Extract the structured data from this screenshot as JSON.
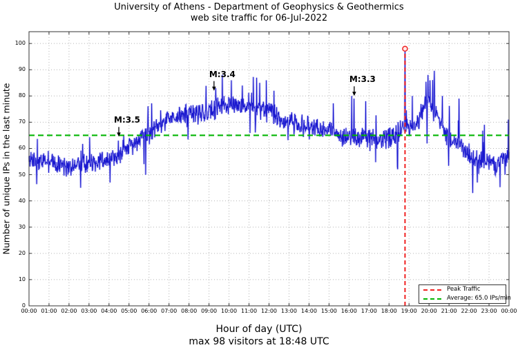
{
  "chart_data": {
    "type": "line",
    "title": "University of Athens - Department of Geophysics & Geothermics",
    "subtitle": "web site traffic for 06-Jul-2022",
    "xlabel": "Hour of day (UTC)",
    "xlabel_note": "max 98 visitors at 18:48 UTC",
    "ylabel": "Number of unique IPs in the last minute",
    "xlim_hours": [
      0,
      24
    ],
    "ylim": [
      0,
      104.5
    ],
    "grid": true,
    "x_tick_labels": [
      "00:00",
      "01:00",
      "02:00",
      "03:00",
      "04:00",
      "05:00",
      "06:00",
      "07:00",
      "08:00",
      "09:00",
      "10:00",
      "11:00",
      "12:00",
      "13:00",
      "14:00",
      "15:00",
      "16:00",
      "17:00",
      "18:00",
      "19:00",
      "20:00",
      "21:00",
      "22:00",
      "23:00",
      "00:00"
    ],
    "y_ticks": [
      0,
      10,
      20,
      30,
      40,
      50,
      60,
      70,
      80,
      90,
      100
    ],
    "series_name": "unique IPs per minute",
    "line_color": "#1a18cf",
    "line_color_light": "#9898ef",
    "grid_color": "#b3b3b3",
    "axis_color": "#333333",
    "average": {
      "value": 65.0,
      "color": "#00b400",
      "legend_label": "Average: 65.0 IPs/min"
    },
    "peak": {
      "value": 98,
      "time_label": "18:48",
      "time_hours": 18.8,
      "color": "#f02020",
      "legend_label": "Peak Traffic"
    },
    "legend_position": "lower right",
    "annotations": [
      {
        "label": "M:3.5",
        "arrow_x_hours": 4.49,
        "arrow_tip_value": 64.5
      },
      {
        "label": "M:3.4",
        "arrow_x_hours": 9.25,
        "arrow_tip_value": 82
      },
      {
        "label": "M:3.3",
        "arrow_x_hours": 16.26,
        "arrow_tip_value": 80
      }
    ],
    "hourly_profile": {
      "hours": [
        0,
        0.5,
        1,
        2,
        3,
        4,
        4.5,
        5,
        5.5,
        6,
        6.5,
        7,
        7.5,
        8,
        8.5,
        9,
        9.5,
        10,
        10.5,
        11,
        11.5,
        12,
        12.5,
        13,
        13.5,
        14,
        15,
        15.5,
        16,
        16.5,
        17,
        17.5,
        18,
        18.5,
        18.8,
        19,
        19.5,
        19.8,
        20,
        20.3,
        20.6,
        21,
        21.5,
        22,
        22.5,
        23,
        23.5,
        24
      ],
      "values": [
        56,
        55,
        55,
        53.5,
        54,
        55.5,
        57,
        60,
        63,
        66,
        69,
        71,
        72,
        73,
        74,
        74.5,
        76,
        77,
        76,
        75.5,
        75,
        74,
        71,
        70,
        69,
        68,
        67,
        65,
        63.5,
        64,
        64.5,
        63,
        64,
        66,
        70,
        68,
        70,
        76,
        78,
        74,
        70,
        64,
        62,
        57,
        55,
        54,
        54,
        58
      ]
    },
    "noise_amplitude": 5.5,
    "spikes_minute_value": [
      [
        155,
        45
      ],
      [
        243,
        47
      ],
      [
        268,
        63
      ],
      [
        560,
        83
      ],
      [
        580,
        88
      ],
      [
        607,
        86
      ],
      [
        640,
        84
      ],
      [
        683,
        87
      ],
      [
        692,
        85
      ],
      [
        712,
        86
      ],
      [
        735,
        82
      ],
      [
        968,
        80
      ],
      [
        975,
        79
      ],
      [
        1010,
        78
      ],
      [
        1105,
        53
      ],
      [
        1128,
        98
      ],
      [
        1150,
        80
      ],
      [
        1197,
        88
      ],
      [
        1203,
        86
      ],
      [
        1215,
        84
      ],
      [
        1240,
        80
      ],
      [
        1290,
        79
      ],
      [
        1345,
        47
      ],
      [
        1438,
        71
      ]
    ]
  }
}
